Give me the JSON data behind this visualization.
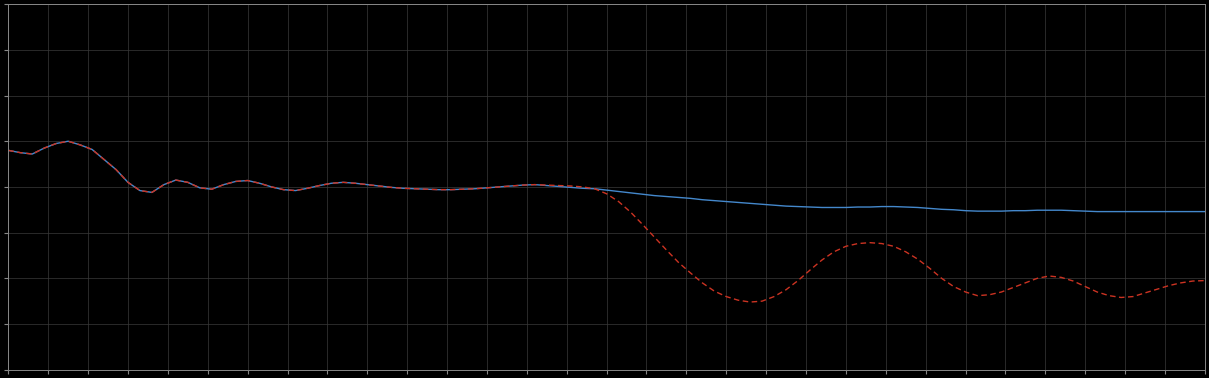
{
  "background_color": "#000000",
  "plot_bg_color": "#000000",
  "grid_color": "#3a3a3a",
  "line1_color": "#4488cc",
  "line2_color": "#cc3322",
  "line_width": 1.0,
  "xlim": [
    0,
    100
  ],
  "ylim": [
    0,
    8
  ],
  "figsize": [
    12.09,
    3.78
  ],
  "dpi": 100,
  "n_xgrid": 30,
  "n_ygrid": 8,
  "spine_color": "#888888",
  "x": [
    0,
    1,
    2,
    3,
    4,
    5,
    6,
    7,
    8,
    9,
    10,
    11,
    12,
    13,
    14,
    15,
    16,
    17,
    18,
    19,
    20,
    21,
    22,
    23,
    24,
    25,
    26,
    27,
    28,
    29,
    30,
    31,
    32,
    33,
    34,
    35,
    36,
    37,
    38,
    39,
    40,
    41,
    42,
    43,
    44,
    45,
    46,
    47,
    48,
    49,
    50,
    51,
    52,
    53,
    54,
    55,
    56,
    57,
    58,
    59,
    60,
    61,
    62,
    63,
    64,
    65,
    66,
    67,
    68,
    69,
    70,
    71,
    72,
    73,
    74,
    75,
    76,
    77,
    78,
    79,
    80,
    81,
    82,
    83,
    84,
    85,
    86,
    87,
    88,
    89,
    90,
    91,
    92,
    93,
    94,
    95,
    96,
    97,
    98,
    99,
    100
  ],
  "y_blue": [
    4.8,
    4.75,
    4.72,
    4.85,
    4.95,
    5.0,
    4.92,
    4.82,
    4.6,
    4.38,
    4.1,
    3.92,
    3.88,
    4.05,
    4.15,
    4.1,
    3.98,
    3.95,
    4.05,
    4.12,
    4.14,
    4.08,
    4.0,
    3.94,
    3.92,
    3.97,
    4.03,
    4.08,
    4.1,
    4.08,
    4.05,
    4.02,
    3.99,
    3.97,
    3.96,
    3.95,
    3.94,
    3.94,
    3.95,
    3.96,
    3.98,
    4.0,
    4.02,
    4.04,
    4.05,
    4.03,
    4.01,
    3.99,
    3.97,
    3.96,
    3.93,
    3.9,
    3.87,
    3.84,
    3.81,
    3.79,
    3.77,
    3.75,
    3.72,
    3.7,
    3.68,
    3.66,
    3.64,
    3.62,
    3.6,
    3.58,
    3.57,
    3.56,
    3.55,
    3.55,
    3.55,
    3.56,
    3.56,
    3.57,
    3.57,
    3.56,
    3.55,
    3.53,
    3.51,
    3.5,
    3.48,
    3.47,
    3.47,
    3.47,
    3.48,
    3.48,
    3.49,
    3.49,
    3.49,
    3.48,
    3.47,
    3.46,
    3.46,
    3.46,
    3.46,
    3.46,
    3.46,
    3.46,
    3.46,
    3.46,
    3.46
  ],
  "y_red": [
    4.8,
    4.75,
    4.72,
    4.85,
    4.95,
    5.0,
    4.92,
    4.82,
    4.6,
    4.38,
    4.1,
    3.92,
    3.88,
    4.05,
    4.15,
    4.1,
    3.98,
    3.95,
    4.05,
    4.12,
    4.14,
    4.08,
    4.0,
    3.94,
    3.92,
    3.97,
    4.03,
    4.08,
    4.1,
    4.08,
    4.05,
    4.02,
    3.99,
    3.97,
    3.96,
    3.95,
    3.94,
    3.94,
    3.95,
    3.96,
    3.98,
    4.0,
    4.02,
    4.04,
    4.05,
    4.04,
    4.03,
    4.02,
    4.0,
    3.96,
    3.85,
    3.68,
    3.45,
    3.18,
    2.9,
    2.62,
    2.35,
    2.12,
    1.9,
    1.72,
    1.6,
    1.52,
    1.48,
    1.5,
    1.6,
    1.75,
    1.95,
    2.18,
    2.4,
    2.58,
    2.7,
    2.76,
    2.78,
    2.76,
    2.7,
    2.58,
    2.42,
    2.22,
    2.0,
    1.82,
    1.7,
    1.62,
    1.64,
    1.7,
    1.8,
    1.9,
    2.0,
    2.05,
    2.02,
    1.94,
    1.82,
    1.7,
    1.62,
    1.58,
    1.6,
    1.68,
    1.76,
    1.84,
    1.9,
    1.94,
    1.95
  ]
}
